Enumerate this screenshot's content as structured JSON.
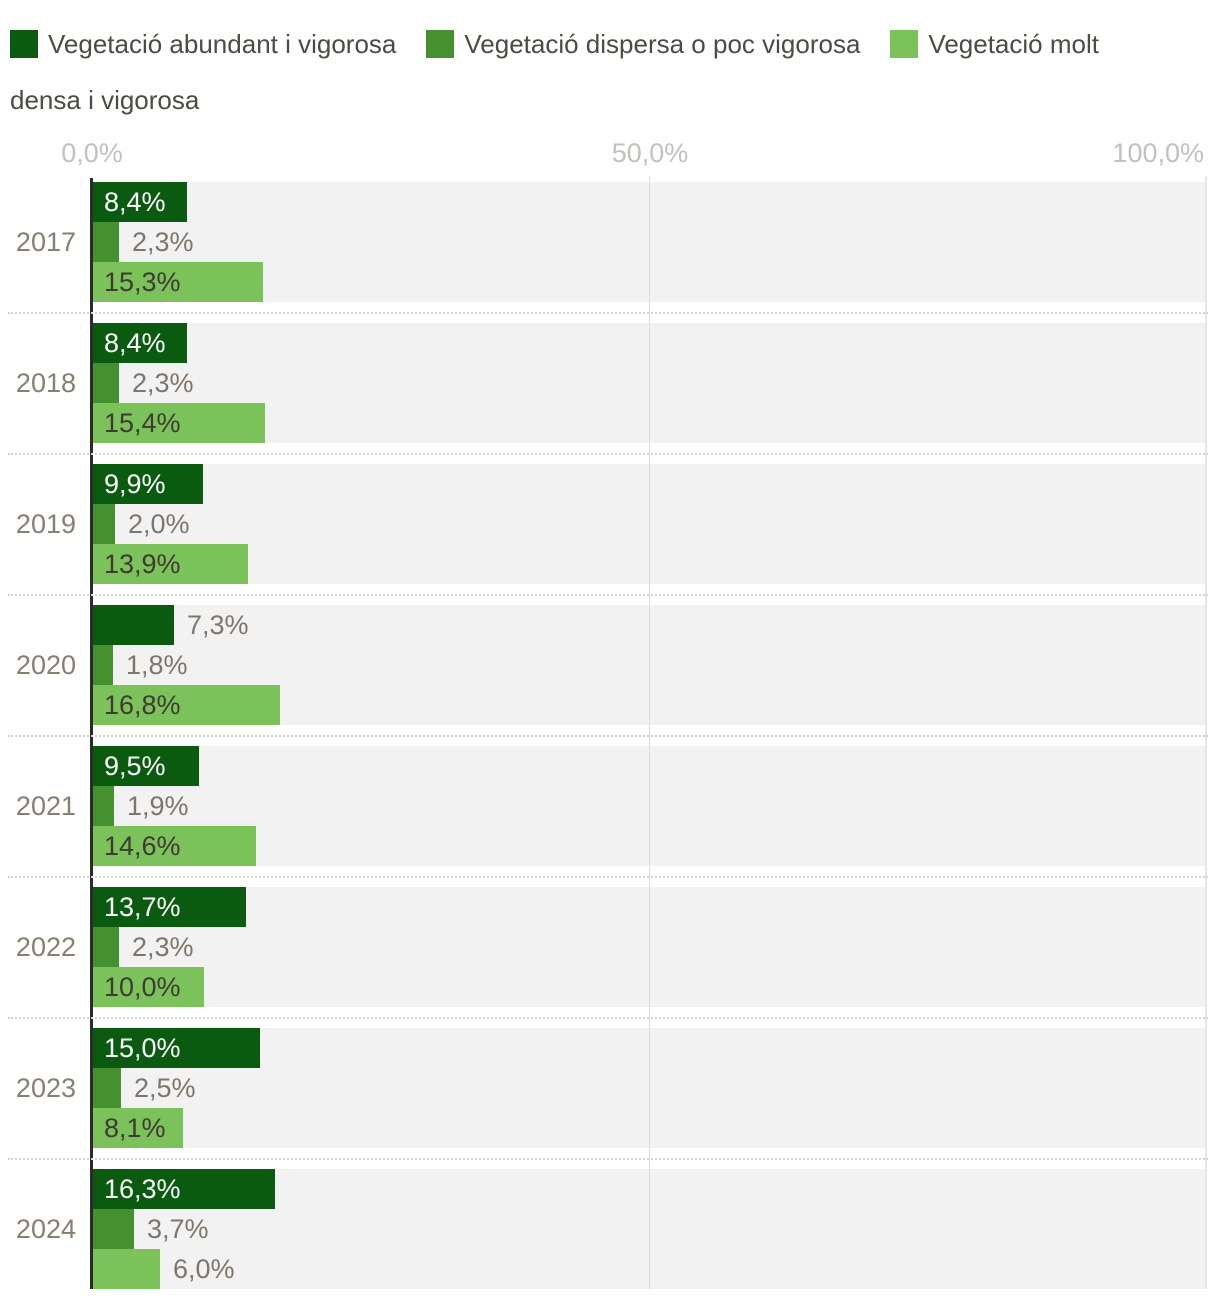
{
  "legend": {
    "items": [
      {
        "label": "Vegetació abundant i vigorosa",
        "color": "#0a5a10"
      },
      {
        "label": "Vegetació dispersa o poc vigorosa",
        "color": "#46912f"
      },
      {
        "label": "Vegetació molt densa i vigorosa",
        "color": "#7cc25a"
      }
    ]
  },
  "x_axis": {
    "ticks": [
      "0,0%",
      "50,0%",
      "100,0%"
    ]
  },
  "chart_data": {
    "type": "bar",
    "orientation": "horizontal",
    "categories": [
      "2017",
      "2018",
      "2019",
      "2020",
      "2021",
      "2022",
      "2023",
      "2024"
    ],
    "series": [
      {
        "name": "Vegetació abundant i vigorosa",
        "color": "#0a5a10",
        "values": [
          8.4,
          8.4,
          9.9,
          7.3,
          9.5,
          13.7,
          15.0,
          16.3
        ],
        "labels": [
          "8,4%",
          "8,4%",
          "9,9%",
          "7,3%",
          "9,5%",
          "13,7%",
          "15,0%",
          "16,3%"
        ]
      },
      {
        "name": "Vegetació dispersa o poc vigorosa",
        "color": "#46912f",
        "values": [
          2.3,
          2.3,
          2.0,
          1.8,
          1.9,
          2.3,
          2.5,
          3.7
        ],
        "labels": [
          "2,3%",
          "2,3%",
          "2,0%",
          "1,8%",
          "1,9%",
          "2,3%",
          "2,5%",
          "3,7%"
        ]
      },
      {
        "name": "Vegetació molt densa i vigorosa",
        "color": "#7cc25a",
        "values": [
          15.3,
          15.4,
          13.9,
          16.8,
          14.6,
          10.0,
          8.1,
          6.0
        ],
        "labels": [
          "15,3%",
          "15,4%",
          "13,9%",
          "16,8%",
          "14,6%",
          "10,0%",
          "8,1%",
          "6,0%"
        ]
      }
    ],
    "xlim": [
      0,
      100
    ],
    "x_tick_values": [
      0,
      50,
      100
    ],
    "legend_position": "top",
    "grid": "vertical gridlines at 50% and 100%, dotted horizontal separators between year groups"
  },
  "colors": {
    "plot_band_background": "#f2f2f2",
    "axis_line": "#2b2b2b",
    "gridline_50": "#dcdcdc",
    "gridline_100": "#e6e6e6",
    "group_separator": "#d2d2d2",
    "year_label_text": "#877e74",
    "outside_value_text": "#7e766c",
    "inside_value_on_dark": "#ffffff",
    "inside_value_on_light": "#3f3a34",
    "axis_tick_text": "#c3c1bd",
    "legend_text": "#4e4a44"
  }
}
